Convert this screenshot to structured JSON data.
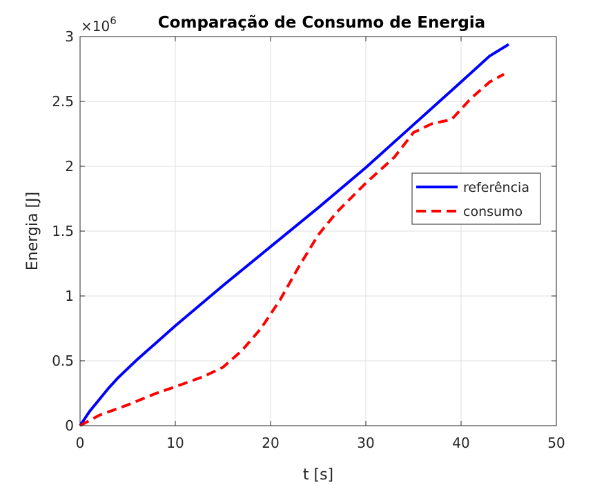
{
  "chart_data": {
    "type": "line",
    "title": "Comparação de Consumo de Energia",
    "xlabel": "t [s]",
    "ylabel": "Energia [J]",
    "xlim": [
      0,
      50
    ],
    "ylim": [
      0,
      3000000
    ],
    "x_ticks": [
      0,
      10,
      20,
      30,
      40,
      50
    ],
    "x_tick_labels": [
      "0",
      "10",
      "20",
      "30",
      "40",
      "50"
    ],
    "y_ticks": [
      0,
      500000,
      1000000,
      1500000,
      2000000,
      2500000,
      3000000
    ],
    "y_tick_labels": [
      "0",
      "0.5",
      "1",
      "1.5",
      "2",
      "2.5",
      "3"
    ],
    "y_exponent_base": "×10",
    "y_exponent_power": "6",
    "grid": true,
    "legend_position": "right",
    "series": [
      {
        "name": "referência",
        "color": "#0000ff",
        "style": "solid",
        "x": [
          0,
          1,
          2,
          3,
          4,
          6,
          8,
          10,
          15,
          20,
          25,
          30,
          35,
          40,
          43,
          45
        ],
        "y": [
          0,
          110000,
          200000,
          290000,
          370000,
          510000,
          640000,
          770000,
          1080000,
          1380000,
          1680000,
          1990000,
          2320000,
          2650000,
          2850000,
          2940000
        ]
      },
      {
        "name": "consumo",
        "color": "#ff0000",
        "style": "dashed",
        "x": [
          0,
          2,
          5,
          8,
          10,
          13,
          15,
          17,
          19,
          21,
          23,
          25,
          27,
          30,
          33,
          35,
          37,
          39,
          41,
          43,
          44.5
        ],
        "y": [
          0,
          80000,
          160000,
          250000,
          300000,
          380000,
          450000,
          580000,
          750000,
          970000,
          1230000,
          1470000,
          1650000,
          1870000,
          2070000,
          2260000,
          2330000,
          2360000,
          2520000,
          2650000,
          2710000
        ]
      }
    ]
  }
}
